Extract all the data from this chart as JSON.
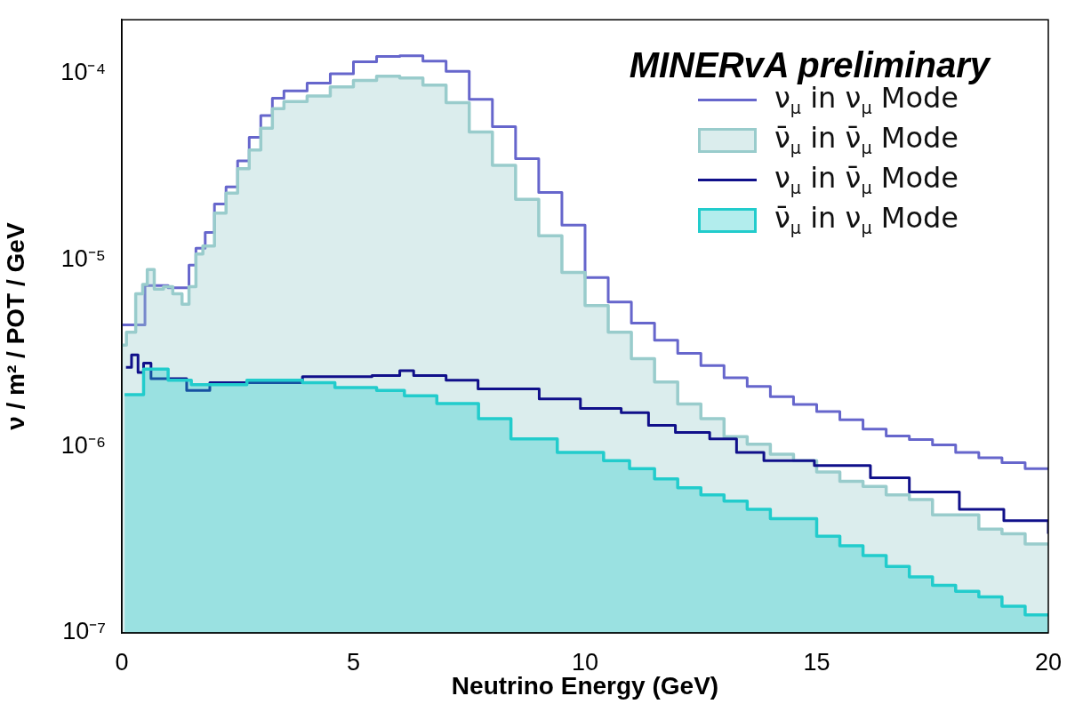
{
  "chart_data": {
    "type": "step",
    "xlabel": "Neutrino Energy (GeV)",
    "ylabel": "ν / m² / POT / GeV",
    "annotations": [
      "MINERvA preliminary"
    ],
    "log": "y",
    "grid": false,
    "legend": "top right",
    "xlim": [
      0,
      20
    ],
    "xticks": [
      0,
      5,
      10,
      15,
      20
    ],
    "ylim": [
      1e-07,
      0.000195
    ],
    "yticks": [
      {
        "value": 1e-07,
        "label": "10⁻⁷"
      },
      {
        "value": 1e-06,
        "label": "10⁻⁶"
      },
      {
        "value": 1e-05,
        "label": "10⁻⁵"
      },
      {
        "value": 0.0001,
        "label": "10⁻⁴"
      }
    ],
    "series": [
      {
        "name": "ν$_{μ}$ in ν$_{μ}$ Mode",
        "color": "#6666cc",
        "x": [
          0,
          0.5,
          1.0,
          1.45,
          1.6,
          1.8,
          2.0,
          2.25,
          2.5,
          2.75,
          3.0,
          3.25,
          3.5,
          4.0,
          4.5,
          5.0,
          5.5,
          6.0,
          6.5,
          7.0,
          7.5,
          8.0,
          8.5,
          9.0,
          9.5,
          10.0,
          10.5,
          11.0,
          11.5,
          12.0,
          12.5,
          13.0,
          13.5,
          14.0,
          14.5,
          15.0,
          15.5,
          16.0,
          16.5,
          17.0,
          17.5,
          18.0,
          18.5,
          19.0,
          19.5,
          20
        ],
        "values": [
          4.5e-06,
          7.3e-06,
          7.1e-06,
          9.4e-06,
          1.16e-05,
          1.41e-05,
          2e-05,
          2.47e-05,
          3.41e-05,
          4.56e-05,
          5.97e-05,
          7.4e-05,
          8.1e-05,
          8.9e-05,
          0.0001,
          0.000116,
          0.000124,
          0.000125,
          0.000117,
          0.000103,
          7.3e-05,
          5.2e-05,
          3.5e-05,
          2.31e-05,
          1.54e-05,
          8.07e-06,
          5.97e-06,
          4.6e-06,
          3.72e-06,
          3.16e-06,
          2.72e-06,
          2.34e-06,
          2.1e-06,
          1.85e-06,
          1.68e-06,
          1.54e-06,
          1.39e-06,
          1.24e-06,
          1.14e-06,
          1.09e-06,
          1.02e-06,
          9.3e-07,
          8.7e-07,
          8.2e-07,
          7.6e-07,
          7.6e-07
        ]
      },
      {
        "type": "area",
        "name": "ν̄$_{μ}$ in ν̄$_{μ}$ Mode",
        "color": "#99cccc",
        "x": [
          0,
          0.1,
          0.1,
          0.3,
          0.3,
          0.45,
          0.45,
          0.55,
          0.55,
          0.7,
          0.7,
          0.9,
          0.9,
          1.1,
          1.1,
          1.3,
          1.3,
          1.45,
          1.45,
          1.6,
          1.6,
          1.75,
          1.75,
          2.0,
          2.0,
          2.25,
          2.25,
          2.5,
          2.5,
          2.75,
          2.75,
          3.0,
          3.0,
          3.25,
          3.25,
          3.5,
          3.5,
          4.0,
          4.0,
          4.5,
          4.5,
          5.0,
          5.0,
          5.5,
          5.5,
          6.0,
          6.0,
          6.5,
          6.5,
          7.0,
          7.0,
          7.5,
          7.5,
          8.0,
          8.0,
          8.5,
          8.5,
          9.0,
          9.0,
          9.5,
          9.5,
          10.0,
          10.0,
          10.5,
          10.5,
          11.0,
          11.0,
          11.5,
          11.5,
          12.0,
          12.0,
          12.5,
          12.5,
          13.0,
          13.0,
          13.5,
          13.5,
          14.0,
          14.0,
          14.5,
          14.5,
          15.0,
          15.0,
          15.5,
          15.5,
          16.0,
          16.0,
          16.5,
          16.5,
          17.0,
          17.0,
          17.5,
          17.5,
          18.0,
          18.0,
          18.5,
          18.5,
          19.0,
          19.0,
          19.5,
          19.5,
          20
        ],
        "values": [
          3.5e-06,
          3.5e-06,
          4.1e-06,
          4.1e-06,
          6.6e-06,
          6.6e-06,
          7.4e-06,
          7.4e-06,
          8.9e-06,
          8.9e-06,
          7e-06,
          7e-06,
          7.2e-06,
          7.2e-06,
          6.6e-06,
          6.6e-06,
          5.8e-06,
          5.8e-06,
          7.2e-06,
          7.2e-06,
          1.08e-05,
          1.08e-05,
          1.19e-05,
          1.19e-05,
          1.79e-05,
          1.79e-05,
          2.29e-05,
          2.29e-05,
          3.1e-05,
          3.1e-05,
          3.9e-05,
          3.9e-05,
          5.1e-05,
          5.1e-05,
          6.5e-05,
          6.5e-05,
          7.1e-05,
          7.1e-05,
          7.6e-05,
          7.6e-05,
          8.5e-05,
          8.5e-05,
          9.2e-05,
          9.2e-05,
          9.7e-05,
          9.7e-05,
          9.5e-05,
          9.5e-05,
          8.7e-05,
          8.7e-05,
          7e-05,
          7e-05,
          4.87e-05,
          4.87e-05,
          3.23e-05,
          3.23e-05,
          2.12e-05,
          2.12e-05,
          1.35e-05,
          1.35e-05,
          8.6e-06,
          8.6e-06,
          5.7e-06,
          5.7e-06,
          4.1e-06,
          4.1e-06,
          2.96e-06,
          2.96e-06,
          2.22e-06,
          2.22e-06,
          1.69e-06,
          1.69e-06,
          1.41e-06,
          1.41e-06,
          1.13e-06,
          1.13e-06,
          1.03e-06,
          1.03e-06,
          9.1e-07,
          9.1e-07,
          8.4e-07,
          8.4e-07,
          7.3e-07,
          7.3e-07,
          6.5e-07,
          6.5e-07,
          6.1e-07,
          6.1e-07,
          5.5e-07,
          5.5e-07,
          5.2e-07,
          5.2e-07,
          4.3e-07,
          4.3e-07,
          4.3e-07,
          4.3e-07,
          3.6e-07,
          3.6e-07,
          3.4e-07,
          3.4e-07,
          3e-07,
          3e-07
        ]
      },
      {
        "name": "ν$_{μ}$ in ν̄$_{μ}$ Mode",
        "color": "#10108a",
        "x": [
          0.09,
          0.21,
          0.35,
          0.47,
          0.63,
          1.4,
          1.9,
          3.9,
          5.4,
          6.0,
          6.3,
          7.0,
          7.69,
          9.01,
          9.9,
          10.78,
          11.37,
          11.95,
          12.69,
          13.27,
          13.86,
          14.95,
          16.16,
          17.0,
          18.08,
          19.04,
          20
        ],
        "values": [
          2.66e-06,
          3.1e-06,
          2.5e-06,
          2.8e-06,
          2.31e-06,
          2e-06,
          2.2e-06,
          2.37e-06,
          2.4e-06,
          2.55e-06,
          2.4e-06,
          2.27e-06,
          2.04e-06,
          1.8e-06,
          1.6e-06,
          1.52e-06,
          1.3e-06,
          1.19e-06,
          1.1e-06,
          9.3e-07,
          8.4e-07,
          7.9e-07,
          6.8e-07,
          5.7e-07,
          4.6e-07,
          4e-07,
          3.4e-07
        ]
      },
      {
        "type": "area",
        "name": "ν̄$_{μ}$ in ν$_{μ}$ Mode",
        "color": "#22cccc",
        "x": [
          0.06,
          0.47,
          0.47,
          1.0,
          1.0,
          1.5,
          1.5,
          2.7,
          2.7,
          3.9,
          3.9,
          4.6,
          4.6,
          5.5,
          5.5,
          6.1,
          6.1,
          6.8,
          6.8,
          7.7,
          7.7,
          8.4,
          8.4,
          9.4,
          9.4,
          10.4,
          10.4,
          10.96,
          10.96,
          11.5,
          11.5,
          12.0,
          12.0,
          12.5,
          12.5,
          13.0,
          13.0,
          13.5,
          13.5,
          14.0,
          14.0,
          15.0,
          15.0,
          15.5,
          15.5,
          16.0,
          16.0,
          16.5,
          16.5,
          17.0,
          17.0,
          17.5,
          17.5,
          18.0,
          18.0,
          18.5,
          18.5,
          19.0,
          19.0,
          19.5,
          19.5,
          20
        ],
        "values": [
          1.9e-06,
          1.9e-06,
          2.6e-06,
          2.6e-06,
          2.27e-06,
          2.27e-06,
          2.15e-06,
          2.15e-06,
          2.27e-06,
          2.27e-06,
          2.2e-06,
          2.2e-06,
          2.07e-06,
          2.07e-06,
          2e-06,
          2e-06,
          1.87e-06,
          1.87e-06,
          1.7e-06,
          1.7e-06,
          1.41e-06,
          1.41e-06,
          1.1e-06,
          1.1e-06,
          9.3e-07,
          9.3e-07,
          8.4e-07,
          8.4e-07,
          7.6e-07,
          7.6e-07,
          6.7e-07,
          6.7e-07,
          6e-07,
          6e-07,
          5.5e-07,
          5.5e-07,
          5.1e-07,
          5.1e-07,
          4.6e-07,
          4.6e-07,
          4.1e-07,
          4.1e-07,
          3.3e-07,
          3.3e-07,
          2.93e-07,
          2.93e-07,
          2.6e-07,
          2.6e-07,
          2.27e-07,
          2.27e-07,
          2e-07,
          2e-07,
          1.8e-07,
          1.8e-07,
          1.67e-07,
          1.67e-07,
          1.56e-07,
          1.56e-07,
          1.39e-07,
          1.39e-07,
          1.25e-07,
          1.25e-07
        ]
      }
    ]
  }
}
